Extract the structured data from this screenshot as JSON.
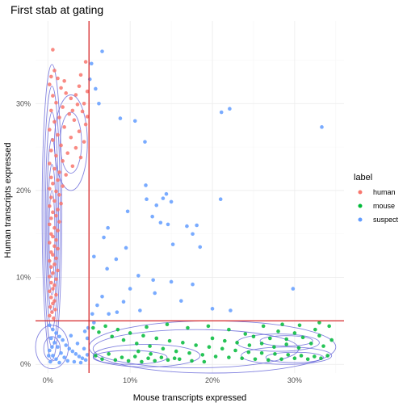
{
  "chart_data": {
    "type": "scatter",
    "title": "First stab at gating",
    "xlabel": "Mouse transcripts expressed",
    "ylabel": "Human transcripts expressed",
    "xlim": [
      -0.015,
      0.36
    ],
    "ylim": [
      -0.01,
      0.395
    ],
    "x_ticks": [
      0,
      0.1,
      0.2,
      0.3
    ],
    "x_tick_labels": [
      "0%",
      "10%",
      "20%",
      "30%"
    ],
    "y_ticks": [
      0,
      0.1,
      0.2,
      0.3
    ],
    "y_tick_labels": [
      "0%",
      "10%",
      "20%",
      "30%"
    ],
    "grid": true,
    "legend": {
      "title": "label",
      "position": "right"
    },
    "gate": {
      "x": 0.05,
      "y": 0.05,
      "color": "#d62728"
    },
    "contour_color": "#5b5bd6",
    "series": [
      {
        "name": "human",
        "color": "#F8766D",
        "points": [
          [
            0.006,
            0.362
          ],
          [
            0.008,
            0.338
          ],
          [
            0.004,
            0.331
          ],
          [
            0.012,
            0.329
          ],
          [
            0.002,
            0.322
          ],
          [
            0.016,
            0.318
          ],
          [
            0.022,
            0.312
          ],
          [
            0.006,
            0.309
          ],
          [
            0.028,
            0.306
          ],
          [
            0.01,
            0.301
          ],
          [
            0.036,
            0.299
          ],
          [
            0.018,
            0.296
          ],
          [
            0.004,
            0.292
          ],
          [
            0.042,
            0.291
          ],
          [
            0.026,
            0.288
          ],
          [
            0.014,
            0.284
          ],
          [
            0.032,
            0.281
          ],
          [
            0.008,
            0.279
          ],
          [
            0.046,
            0.276
          ],
          [
            0.02,
            0.273
          ],
          [
            0.002,
            0.27
          ],
          [
            0.038,
            0.268
          ],
          [
            0.012,
            0.264
          ],
          [
            0.028,
            0.261
          ],
          [
            0.006,
            0.258
          ],
          [
            0.044,
            0.256
          ],
          [
            0.016,
            0.252
          ],
          [
            0.034,
            0.249
          ],
          [
            0.004,
            0.246
          ],
          [
            0.024,
            0.243
          ],
          [
            0.01,
            0.24
          ],
          [
            0.04,
            0.238
          ],
          [
            0.018,
            0.234
          ],
          [
            0.002,
            0.231
          ],
          [
            0.03,
            0.228
          ],
          [
            0.008,
            0.225
          ],
          [
            0.014,
            0.221
          ],
          [
            0.022,
            0.218
          ],
          [
            0.004,
            0.215
          ],
          [
            0.012,
            0.212
          ],
          [
            0.006,
            0.208
          ],
          [
            0.018,
            0.205
          ],
          [
            0.002,
            0.202
          ],
          [
            0.01,
            0.199
          ],
          [
            0.014,
            0.195
          ],
          [
            0.004,
            0.192
          ],
          [
            0.008,
            0.188
          ],
          [
            0.016,
            0.185
          ],
          [
            0.002,
            0.182
          ],
          [
            0.012,
            0.178
          ],
          [
            0.006,
            0.175
          ],
          [
            0.01,
            0.171
          ],
          [
            0.004,
            0.168
          ],
          [
            0.014,
            0.164
          ],
          [
            0.002,
            0.161
          ],
          [
            0.008,
            0.157
          ],
          [
            0.012,
            0.154
          ],
          [
            0.004,
            0.15
          ],
          [
            0.006,
            0.147
          ],
          [
            0.01,
            0.143
          ],
          [
            0.002,
            0.14
          ],
          [
            0.008,
            0.136
          ],
          [
            0.012,
            0.133
          ],
          [
            0.004,
            0.129
          ],
          [
            0.006,
            0.126
          ],
          [
            0.01,
            0.122
          ],
          [
            0.002,
            0.119
          ],
          [
            0.008,
            0.115
          ],
          [
            0.004,
            0.112
          ],
          [
            0.012,
            0.108
          ],
          [
            0.006,
            0.105
          ],
          [
            0.002,
            0.101
          ],
          [
            0.01,
            0.098
          ],
          [
            0.004,
            0.094
          ],
          [
            0.008,
            0.091
          ],
          [
            0.006,
            0.087
          ],
          [
            0.002,
            0.084
          ],
          [
            0.01,
            0.08
          ],
          [
            0.004,
            0.077
          ],
          [
            0.008,
            0.073
          ],
          [
            0.006,
            0.07
          ],
          [
            0.003,
            0.066
          ],
          [
            0.009,
            0.063
          ],
          [
            0.005,
            0.06
          ],
          [
            0.002,
            0.056
          ],
          [
            0.007,
            0.053
          ],
          [
            0.046,
            0.348
          ],
          [
            0.04,
            0.333
          ],
          [
            0.048,
            0.314
          ],
          [
            0.038,
            0.32
          ],
          [
            0.044,
            0.3
          ],
          [
            0.034,
            0.31
          ],
          [
            0.048,
            0.285
          ],
          [
            0.02,
            0.326
          ],
          [
            0.03,
            0.292
          ]
        ]
      },
      {
        "name": "mouse",
        "color": "#00BA38",
        "points": [
          [
            0.055,
            0.042
          ],
          [
            0.062,
            0.037
          ],
          [
            0.07,
            0.044
          ],
          [
            0.078,
            0.032
          ],
          [
            0.085,
            0.04
          ],
          [
            0.092,
            0.028
          ],
          [
            0.1,
            0.036
          ],
          [
            0.108,
            0.024
          ],
          [
            0.116,
            0.033
          ],
          [
            0.124,
            0.021
          ],
          [
            0.132,
            0.03
          ],
          [
            0.14,
            0.018
          ],
          [
            0.148,
            0.027
          ],
          [
            0.156,
            0.015
          ],
          [
            0.164,
            0.025
          ],
          [
            0.172,
            0.013
          ],
          [
            0.18,
            0.022
          ],
          [
            0.188,
            0.011
          ],
          [
            0.196,
            0.02
          ],
          [
            0.204,
            0.009
          ],
          [
            0.212,
            0.018
          ],
          [
            0.22,
            0.008
          ],
          [
            0.228,
            0.016
          ],
          [
            0.236,
            0.007
          ],
          [
            0.244,
            0.014
          ],
          [
            0.252,
            0.006
          ],
          [
            0.26,
            0.013
          ],
          [
            0.268,
            0.005
          ],
          [
            0.276,
            0.012
          ],
          [
            0.284,
            0.006
          ],
          [
            0.292,
            0.011
          ],
          [
            0.3,
            0.007
          ],
          [
            0.308,
            0.01
          ],
          [
            0.316,
            0.006
          ],
          [
            0.324,
            0.009
          ],
          [
            0.332,
            0.007
          ],
          [
            0.34,
            0.01
          ],
          [
            0.058,
            0.01
          ],
          [
            0.066,
            0.006
          ],
          [
            0.074,
            0.012
          ],
          [
            0.082,
            0.005
          ],
          [
            0.09,
            0.008
          ],
          [
            0.098,
            0.004
          ],
          [
            0.106,
            0.009
          ],
          [
            0.114,
            0.003
          ],
          [
            0.122,
            0.007
          ],
          [
            0.13,
            0.004
          ],
          [
            0.138,
            0.008
          ],
          [
            0.146,
            0.005
          ],
          [
            0.154,
            0.007
          ],
          [
            0.2,
            0.03
          ],
          [
            0.215,
            0.027
          ],
          [
            0.23,
            0.025
          ],
          [
            0.245,
            0.022
          ],
          [
            0.26,
            0.024
          ],
          [
            0.275,
            0.02
          ],
          [
            0.29,
            0.023
          ],
          [
            0.305,
            0.019
          ],
          [
            0.32,
            0.024
          ],
          [
            0.335,
            0.021
          ],
          [
            0.25,
            0.032
          ],
          [
            0.27,
            0.03
          ],
          [
            0.29,
            0.029
          ],
          [
            0.31,
            0.031
          ],
          [
            0.33,
            0.033
          ],
          [
            0.345,
            0.028
          ],
          [
            0.325,
            0.04
          ],
          [
            0.3,
            0.036
          ],
          [
            0.28,
            0.038
          ],
          [
            0.24,
            0.035
          ],
          [
            0.22,
            0.04
          ],
          [
            0.195,
            0.044
          ],
          [
            0.17,
            0.042
          ],
          [
            0.145,
            0.046
          ],
          [
            0.12,
            0.043
          ],
          [
            0.33,
            0.048
          ],
          [
            0.342,
            0.044
          ],
          [
            0.306,
            0.045
          ],
          [
            0.285,
            0.046
          ],
          [
            0.262,
            0.044
          ],
          [
            0.11,
            0.015
          ],
          [
            0.125,
            0.012
          ],
          [
            0.16,
            0.006
          ],
          [
            0.175,
            0.004
          ],
          [
            0.19,
            0.003
          ]
        ]
      },
      {
        "name": "suspect",
        "color": "#619CFF",
        "points": [
          [
            0.066,
            0.36
          ],
          [
            0.053,
            0.346
          ],
          [
            0.051,
            0.328
          ],
          [
            0.058,
            0.317
          ],
          [
            0.062,
            0.3
          ],
          [
            0.088,
            0.283
          ],
          [
            0.106,
            0.28
          ],
          [
            0.118,
            0.256
          ],
          [
            0.211,
            0.29
          ],
          [
            0.221,
            0.294
          ],
          [
            0.333,
            0.273
          ],
          [
            0.119,
            0.206
          ],
          [
            0.14,
            0.191
          ],
          [
            0.144,
            0.196
          ],
          [
            0.132,
            0.183
          ],
          [
            0.12,
            0.19
          ],
          [
            0.15,
            0.187
          ],
          [
            0.097,
            0.176
          ],
          [
            0.127,
            0.17
          ],
          [
            0.181,
            0.16
          ],
          [
            0.169,
            0.159
          ],
          [
            0.176,
            0.15
          ],
          [
            0.146,
            0.161
          ],
          [
            0.137,
            0.163
          ],
          [
            0.21,
            0.19
          ],
          [
            0.073,
            0.157
          ],
          [
            0.068,
            0.146
          ],
          [
            0.095,
            0.134
          ],
          [
            0.152,
            0.138
          ],
          [
            0.185,
            0.135
          ],
          [
            0.083,
            0.121
          ],
          [
            0.072,
            0.11
          ],
          [
            0.11,
            0.102
          ],
          [
            0.128,
            0.097
          ],
          [
            0.15,
            0.095
          ],
          [
            0.176,
            0.092
          ],
          [
            0.1,
            0.087
          ],
          [
            0.092,
            0.072
          ],
          [
            0.066,
            0.078
          ],
          [
            0.13,
            0.082
          ],
          [
            0.162,
            0.073
          ],
          [
            0.2,
            0.064
          ],
          [
            0.222,
            0.062
          ],
          [
            0.298,
            0.087
          ],
          [
            0.056,
            0.124
          ],
          [
            0.06,
            0.068
          ],
          [
            0.084,
            0.06
          ],
          [
            0.074,
            0.058
          ],
          [
            0.054,
            0.058
          ],
          [
            0.112,
            0.062
          ],
          [
            0.002,
            0.045
          ],
          [
            0.006,
            0.04
          ],
          [
            0.01,
            0.036
          ],
          [
            0.014,
            0.032
          ],
          [
            0.004,
            0.03
          ],
          [
            0.018,
            0.028
          ],
          [
            0.008,
            0.025
          ],
          [
            0.022,
            0.022
          ],
          [
            0.012,
            0.02
          ],
          [
            0.026,
            0.018
          ],
          [
            0.002,
            0.016
          ],
          [
            0.03,
            0.015
          ],
          [
            0.016,
            0.013
          ],
          [
            0.034,
            0.012
          ],
          [
            0.006,
            0.01
          ],
          [
            0.038,
            0.009
          ],
          [
            0.02,
            0.008
          ],
          [
            0.042,
            0.007
          ],
          [
            0.01,
            0.006
          ],
          [
            0.046,
            0.005
          ],
          [
            0.024,
            0.004
          ],
          [
            0.003,
            0.003
          ],
          [
            0.032,
            0.003
          ],
          [
            0.014,
            0.002
          ],
          [
            0.04,
            0.002
          ],
          [
            0.048,
            0.011
          ],
          [
            0.044,
            0.018
          ],
          [
            0.036,
            0.024
          ],
          [
            0.028,
            0.033
          ],
          [
            0.048,
            0.03
          ],
          [
            0.001,
            0.01
          ],
          [
            0.005,
            0.02
          ],
          [
            0.049,
            0.042
          ],
          [
            0.045,
            0.038
          ],
          [
            0.056,
            0.048
          ]
        ]
      }
    ],
    "contours": [
      {
        "cx": 0.005,
        "cy": 0.175,
        "rx": 0.012,
        "ry": 0.17
      },
      {
        "cx": 0.005,
        "cy": 0.17,
        "rx": 0.01,
        "ry": 0.15
      },
      {
        "cx": 0.005,
        "cy": 0.165,
        "rx": 0.008,
        "ry": 0.125
      },
      {
        "cx": 0.005,
        "cy": 0.16,
        "rx": 0.0065,
        "ry": 0.1
      },
      {
        "cx": 0.005,
        "cy": 0.155,
        "rx": 0.005,
        "ry": 0.075
      },
      {
        "cx": 0.005,
        "cy": 0.15,
        "rx": 0.0035,
        "ry": 0.05
      },
      {
        "cx": 0.028,
        "cy": 0.255,
        "rx": 0.02,
        "ry": 0.055
      },
      {
        "cx": 0.028,
        "cy": 0.255,
        "rx": 0.013,
        "ry": 0.035
      },
      {
        "cx": 0.005,
        "cy": 0.02,
        "rx": 0.02,
        "ry": 0.025
      },
      {
        "cx": 0.005,
        "cy": 0.018,
        "rx": 0.01,
        "ry": 0.014
      },
      {
        "cx": 0.2,
        "cy": 0.02,
        "rx": 0.15,
        "ry": 0.03
      },
      {
        "cx": 0.18,
        "cy": 0.018,
        "rx": 0.125,
        "ry": 0.022
      },
      {
        "cx": 0.12,
        "cy": 0.01,
        "rx": 0.065,
        "ry": 0.013
      },
      {
        "cx": 0.1,
        "cy": 0.008,
        "rx": 0.045,
        "ry": 0.008
      },
      {
        "cx": 0.29,
        "cy": 0.01,
        "rx": 0.055,
        "ry": 0.01
      },
      {
        "cx": 0.3,
        "cy": 0.008,
        "rx": 0.035,
        "ry": 0.006
      },
      {
        "cx": 0.28,
        "cy": 0.025,
        "rx": 0.05,
        "ry": 0.01
      },
      {
        "cx": 0.29,
        "cy": 0.027,
        "rx": 0.032,
        "ry": 0.006
      }
    ]
  }
}
